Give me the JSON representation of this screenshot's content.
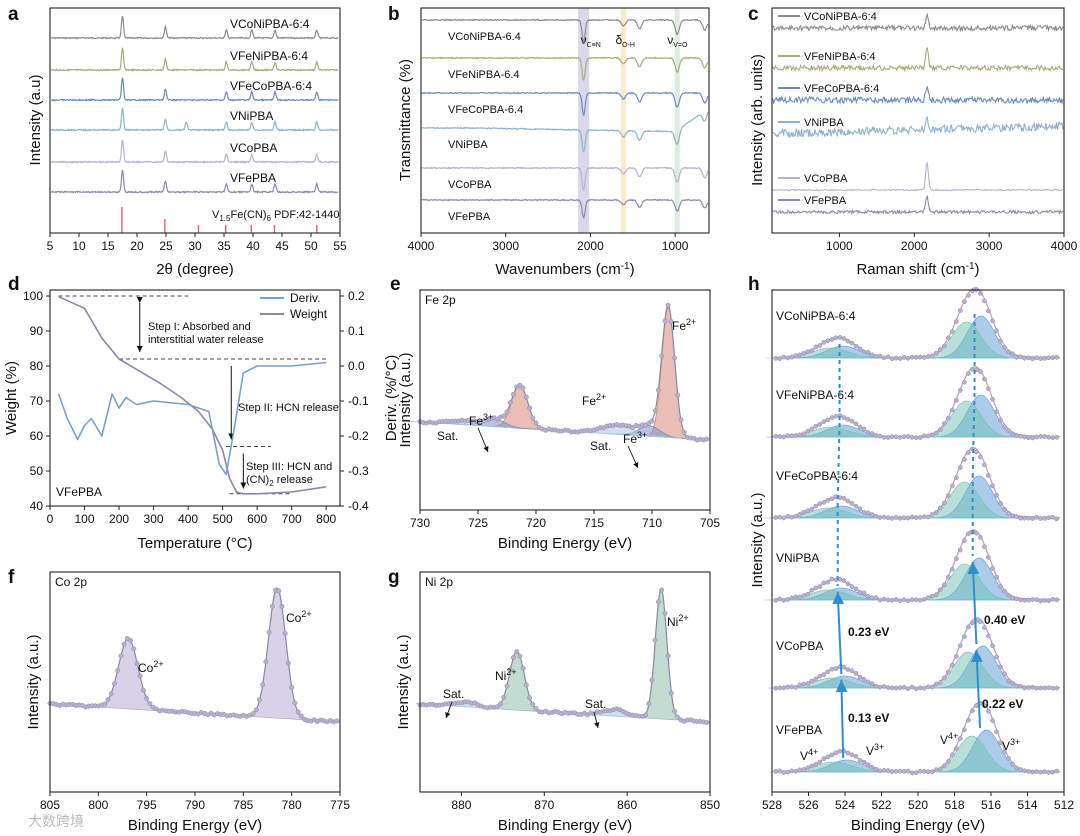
{
  "watermark": "大数跨境",
  "chart_data": [
    {
      "id": "a",
      "type": "line",
      "panel_label": "a",
      "title": "",
      "xlabel": "2θ (degree)",
      "ylabel": "Intensity (a.u)",
      "xlim": [
        5,
        55
      ],
      "xticks": [
        5,
        10,
        15,
        20,
        25,
        30,
        35,
        40,
        45,
        50,
        55
      ],
      "reference": {
        "label": "V1.5Fe(CN)6 PDF:42-1440",
        "positions": [
          17.4,
          24.8,
          30.6,
          35.3,
          39.7,
          43.7,
          51.0
        ]
      },
      "series": [
        {
          "name": "VCoNiPBA-6:4",
          "color": "#8c8c8c",
          "peaks": [
            17.5,
            24.9,
            35.4,
            39.8,
            43.8,
            51.0
          ]
        },
        {
          "name": "VFeNiPBA-6:4",
          "color": "#a8ab78",
          "peaks": [
            17.5,
            24.9,
            35.4,
            39.8,
            43.8,
            51.0
          ]
        },
        {
          "name": "VFeCoPBA-6:4",
          "color": "#6b8cbf",
          "peaks": [
            17.5,
            24.9,
            35.4,
            39.8,
            43.8,
            51.0
          ]
        },
        {
          "name": "VNiPBA",
          "color": "#8fb2cc",
          "peaks": [
            17.5,
            24.9,
            28.5,
            35.4,
            39.8,
            43.8,
            51.0
          ]
        },
        {
          "name": "VCoPBA",
          "color": "#b7b1cf",
          "peaks": [
            17.5,
            24.9,
            35.4,
            39.8,
            51.0
          ]
        },
        {
          "name": "VFePBA",
          "color": "#8d87ad",
          "peaks": [
            17.5,
            24.9,
            35.4,
            39.8,
            43.8,
            51.0
          ]
        }
      ]
    },
    {
      "id": "b",
      "type": "line",
      "panel_label": "b",
      "xlabel": "Wavenumbers (cm-1)",
      "ylabel": "Transmittance (%)",
      "xlim": [
        4000,
        600
      ],
      "xticks": [
        4000,
        3000,
        2000,
        1000
      ],
      "bands": [
        {
          "label": "νC≡N",
          "center": 2080,
          "color": "#c9c6e0"
        },
        {
          "label": "δO-H",
          "center": 1610,
          "color": "#f6e3b8"
        },
        {
          "label": "νV=O",
          "center": 975,
          "color": "#cfe5cf"
        }
      ],
      "series": [
        {
          "name": "VCoNiPBA-6.4",
          "color": "#8c8c8c"
        },
        {
          "name": "VFeNiPBA-6.4",
          "color": "#a8ab78"
        },
        {
          "name": "VFeCoPBA-6.4",
          "color": "#6b8cbf"
        },
        {
          "name": "VNiPBA",
          "color": "#8fb2cc"
        },
        {
          "name": "VCoPBA",
          "color": "#b7b1cf"
        },
        {
          "name": "VFePBA",
          "color": "#8d87ad"
        }
      ]
    },
    {
      "id": "c",
      "type": "line",
      "panel_label": "c",
      "xlabel": "Raman shift (cm-1)",
      "ylabel": "Intensity (arb. units)",
      "xlim": [
        100,
        4000
      ],
      "xticks": [
        1000,
        2000,
        3000,
        4000
      ],
      "peak": 2170,
      "series": [
        {
          "name": "VCoNiPBA-6:4",
          "color": "#8c8c8c"
        },
        {
          "name": "VFeNiPBA-6:4",
          "color": "#a8ab78"
        },
        {
          "name": "VFeCoPBA-6:4",
          "color": "#6b8cbf"
        },
        {
          "name": "VNiPBA",
          "color": "#8fb2cc"
        },
        {
          "name": "VCoPBA",
          "color": "#b7b1cf"
        },
        {
          "name": "VFePBA",
          "color": "#8d87ad"
        }
      ]
    },
    {
      "id": "d",
      "type": "line",
      "panel_label": "d",
      "xlabel": "Temperature (°C)",
      "ylabel": "Weight (%)",
      "y2label": "Deriv. (%/°C)",
      "xlim": [
        0,
        840
      ],
      "ylim": [
        40,
        100
      ],
      "y2lim": [
        -0.4,
        0.2
      ],
      "xticks": [
        0,
        100,
        200,
        300,
        400,
        500,
        600,
        700,
        800
      ],
      "yticks": [
        40,
        50,
        60,
        70,
        80,
        90,
        100
      ],
      "y2ticks": [
        -0.4,
        -0.3,
        -0.2,
        -0.1,
        0.0,
        0.1,
        0.2
      ],
      "sample": "VFePBA",
      "legend": [
        "Deriv.",
        "Weight"
      ],
      "steps": [
        "Step I: Absorbed and",
        "interstitial water release",
        "Step II: HCN release",
        "Step III: HCN and",
        "(CN)2 release"
      ],
      "series": [
        {
          "name": "Weight",
          "color": "#8d87ad",
          "x": [
            25,
            100,
            150,
            200,
            260,
            320,
            380,
            430,
            470,
            500,
            520,
            540,
            560,
            600,
            700,
            800
          ],
          "y": [
            99.8,
            96.5,
            88,
            82,
            78.5,
            75,
            71,
            67,
            62,
            56,
            48,
            44,
            43.5,
            43.5,
            44,
            45.5
          ]
        },
        {
          "name": "Deriv.",
          "color": "#7aa0d0",
          "x": [
            25,
            50,
            80,
            100,
            120,
            150,
            180,
            200,
            220,
            250,
            300,
            400,
            460,
            490,
            510,
            530,
            560,
            600,
            700,
            800
          ],
          "y": [
            -0.08,
            -0.15,
            -0.21,
            -0.17,
            -0.15,
            -0.2,
            -0.08,
            -0.12,
            -0.09,
            -0.11,
            -0.1,
            -0.11,
            -0.13,
            -0.28,
            -0.31,
            -0.2,
            -0.02,
            0.0,
            0.0,
            0.01
          ]
        }
      ]
    },
    {
      "id": "e",
      "type": "xps",
      "panel_label": "e",
      "region": "Fe 2p",
      "xlabel": "Binding Energy (eV)",
      "ylabel": "Intensity (a.u.)",
      "xlim": [
        730,
        705
      ],
      "xticks": [
        730,
        725,
        720,
        715,
        710,
        705
      ],
      "peaks": [
        {
          "label": "Fe2+",
          "center": 708.6,
          "height": 1.0,
          "color": "#d6897c"
        },
        {
          "label": "Fe2+",
          "center": 721.4,
          "height": 0.33,
          "color": "#d6897c"
        },
        {
          "label": "Fe3+",
          "center": 710.2,
          "height": 0.08,
          "color": "#7f92c6"
        },
        {
          "label": "Fe3+",
          "center": 723.6,
          "height": 0.06,
          "color": "#7f92c6"
        },
        {
          "label": "Sat.",
          "center": 713.0,
          "height": 0.07,
          "color": "#a9c6e3"
        },
        {
          "label": "Sat.",
          "center": 726.5,
          "height": 0.03,
          "color": "#a9c6e3"
        }
      ]
    },
    {
      "id": "f",
      "type": "xps",
      "panel_label": "f",
      "region": "Co 2p",
      "xlabel": "Binding Energy (eV)",
      "ylabel": "Intensity (a.u.)",
      "xlim": [
        805,
        775
      ],
      "xticks": [
        805,
        800,
        795,
        790,
        785,
        780,
        775
      ],
      "peaks": [
        {
          "label": "Co2+",
          "center": 781.5,
          "height": 1.0,
          "color": "#b8acd6"
        },
        {
          "label": "Co2+",
          "center": 796.9,
          "height": 0.54,
          "color": "#b8acd6"
        }
      ]
    },
    {
      "id": "g",
      "type": "xps",
      "panel_label": "g",
      "region": "Ni 2p",
      "xlabel": "Binding Energy (eV)",
      "ylabel": "Intensity (a.u.)",
      "xlim": [
        885,
        850
      ],
      "xticks": [
        880,
        870,
        860,
        850
      ],
      "peaks": [
        {
          "label": "Ni2+",
          "center": 855.9,
          "height": 1.0,
          "color": "#8fc0ad"
        },
        {
          "label": "Ni2+",
          "center": 873.3,
          "height": 0.45,
          "color": "#8fc0ad"
        },
        {
          "label": "Sat.",
          "center": 861.5,
          "height": 0.05,
          "color": "#a9c6e3"
        },
        {
          "label": "Sat.",
          "center": 879.5,
          "height": 0.04,
          "color": "#a9c6e3"
        }
      ]
    },
    {
      "id": "h",
      "type": "xps",
      "panel_label": "h",
      "region": "V 2p",
      "xlabel": "Binding Energy (eV)",
      "ylabel": "Intensity (a.u.)",
      "xlim": [
        528,
        512
      ],
      "xticks": [
        528,
        526,
        524,
        522,
        520,
        518,
        516,
        514,
        512
      ],
      "species": [
        "V4+",
        "V3+",
        "V4+",
        "V3+"
      ],
      "shifts": [
        "0.13 eV",
        "0.23 eV",
        "0.22 eV",
        "0.40 eV"
      ],
      "series": [
        {
          "name": "VCoNiPBA-6:4",
          "v2p3": 516.9,
          "v2p1": 524.3
        },
        {
          "name": "VFeNiPBA-6:4",
          "v2p3": 516.9,
          "v2p1": 524.3
        },
        {
          "name": "VFeCoPBA-6:4",
          "v2p3": 517.0,
          "v2p1": 524.4
        },
        {
          "name": "VNiPBA",
          "v2p3": 517.0,
          "v2p1": 524.4
        },
        {
          "name": "VCoPBA",
          "v2p3": 516.8,
          "v2p1": 524.2
        },
        {
          "name": "VFePBA",
          "v2p3": 516.6,
          "v2p1": 524.1
        }
      ]
    }
  ]
}
